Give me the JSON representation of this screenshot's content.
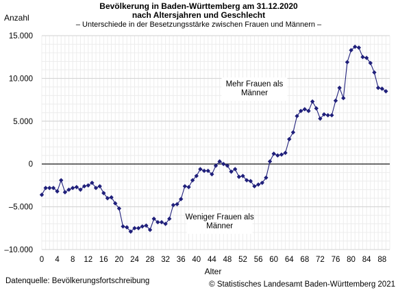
{
  "chart_data": {
    "type": "line",
    "title_line1": "Bevölkerung in Baden-Württemberg am 31.12.2020",
    "title_line2": "nach Altersjahren und Geschlecht",
    "subtitle": "– Unterschiede in der Besetzungsstärke zwischen Frauen und Männern –",
    "ylabel": "Anzahl",
    "xlabel": "Alter",
    "ylim": [
      -10000,
      15000
    ],
    "xlim": [
      0,
      90
    ],
    "y_ticks": [
      -10000,
      -5000,
      0,
      5000,
      10000,
      15000
    ],
    "y_tick_labels": [
      "–10.000",
      "–5.000",
      "0",
      "5.000",
      "10.000",
      "15.000"
    ],
    "x_ticks": [
      0,
      4,
      8,
      12,
      16,
      20,
      24,
      28,
      32,
      36,
      40,
      44,
      48,
      52,
      56,
      60,
      64,
      68,
      72,
      76,
      80,
      84,
      88
    ],
    "grid": true,
    "line_color": "#1f1f7a",
    "series": [
      {
        "x": [
          0,
          1,
          2,
          3,
          4,
          5,
          6,
          7,
          8,
          9,
          10,
          11,
          12,
          13,
          14,
          15,
          16,
          17,
          18,
          19,
          20,
          21,
          22,
          23,
          24,
          25,
          26,
          27,
          28,
          29,
          30,
          31,
          32,
          33,
          34,
          35,
          36,
          37,
          38,
          39,
          40,
          41,
          42,
          43,
          44,
          45,
          46,
          47,
          48,
          49,
          50,
          51,
          52,
          53,
          54,
          55,
          56,
          57,
          58,
          59,
          60,
          61,
          62,
          63,
          64,
          65,
          66,
          67,
          68,
          69,
          70,
          71,
          72,
          73,
          74,
          75,
          76,
          77,
          78,
          79,
          80,
          81,
          82,
          83,
          84,
          85,
          86,
          87,
          88,
          89
        ],
        "values": [
          -3600,
          -2800,
          -2800,
          -2800,
          -3200,
          -1900,
          -3300,
          -3000,
          -2800,
          -2700,
          -3000,
          -2600,
          -2500,
          -2200,
          -2800,
          -2600,
          -3400,
          -4000,
          -3900,
          -4600,
          -5200,
          -7300,
          -7400,
          -7900,
          -7500,
          -7500,
          -7300,
          -7200,
          -7700,
          -6400,
          -6800,
          -6800,
          -7000,
          -6400,
          -4800,
          -4700,
          -4100,
          -2600,
          -2700,
          -1900,
          -1400,
          -600,
          -800,
          -800,
          -1200,
          -200,
          300,
          0,
          -200,
          -900,
          -600,
          -1500,
          -1400,
          -1900,
          -2000,
          -2600,
          -2400,
          -2200,
          -1600,
          300,
          1200,
          1000,
          1100,
          1300,
          2900,
          3700,
          5600,
          6200,
          6400,
          6200,
          7300,
          6500,
          5300,
          5800,
          5700,
          5700,
          7400,
          8900,
          7700,
          11900,
          13300,
          13700,
          13600,
          12500,
          12400,
          11800,
          10700,
          8900,
          8800,
          8500
        ]
      }
    ],
    "annotations": [
      {
        "id": "upper",
        "lines": [
          "Mehr Frauen als",
          "Männer"
        ],
        "at": [
          55,
          8750
        ]
      },
      {
        "id": "lower",
        "lines": [
          "Weniger Frauen als",
          "Männer"
        ],
        "at": [
          46,
          -6800
        ]
      }
    ],
    "source": "Datenquelle: Bevölkerungsfortschreibung",
    "copyright": "© Statistisches Landesamt Baden-Württemberg 2021"
  }
}
